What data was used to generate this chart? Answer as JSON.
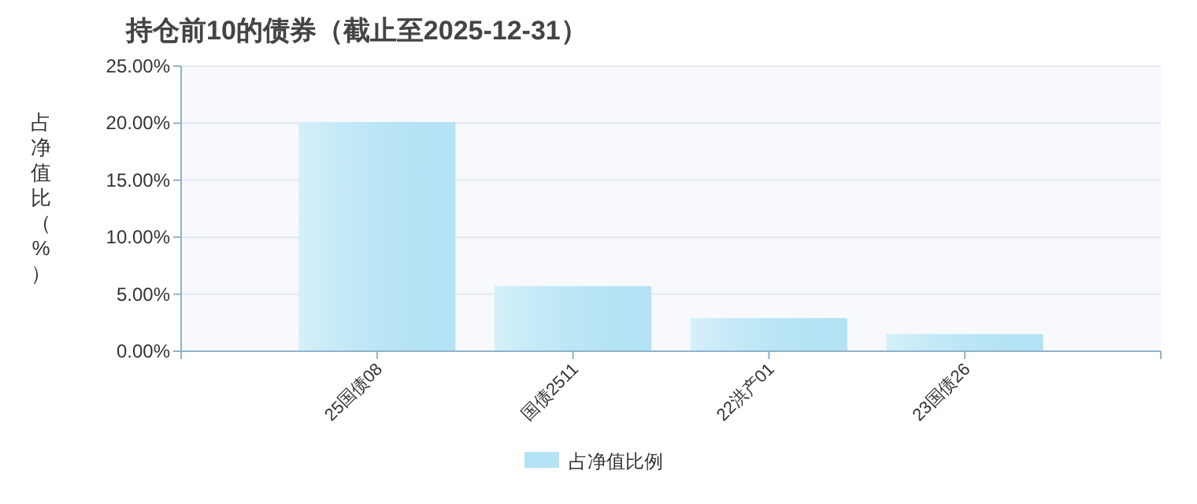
{
  "chart_data": {
    "type": "bar",
    "title": "持仓前10的债券（截止至2025-12-31）",
    "ylabel": "占净值比（%）",
    "categories": [
      "25国债08",
      "国债2511",
      "22洪产01",
      "23国债26"
    ],
    "series": [
      {
        "name": "占净值比例",
        "color": "#b3e3f4",
        "values": [
          20.1,
          5.7,
          2.9,
          1.5
        ]
      }
    ],
    "ylim": [
      0,
      25
    ],
    "yticks": [
      {
        "value": 0,
        "label": "0.00%"
      },
      {
        "value": 5,
        "label": "5.00%"
      },
      {
        "value": 10,
        "label": "10.00%"
      },
      {
        "value": 15,
        "label": "15.00%"
      },
      {
        "value": 20,
        "label": "20.00%"
      },
      {
        "value": 25,
        "label": "25.00%"
      }
    ],
    "grid": "y",
    "legend": "bottom"
  }
}
